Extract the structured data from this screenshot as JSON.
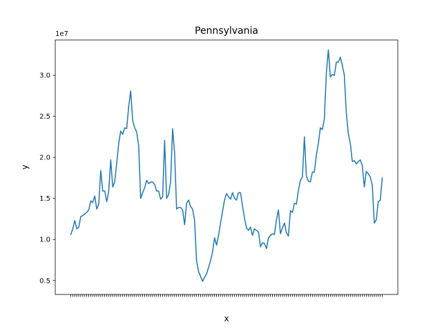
{
  "chart_data": {
    "type": "line",
    "title": "Pennsylvania",
    "xlabel": "x",
    "ylabel": "y",
    "y_scale_label": "1e7",
    "ylim": [
      3300000,
      34300000
    ],
    "yticks": [
      5000000,
      10000000,
      15000000,
      20000000,
      25000000,
      30000000
    ],
    "ytick_labels": [
      "0.5",
      "1.0",
      "1.5",
      "2.0",
      "2.5",
      "3.0"
    ],
    "grid": false,
    "legend": "none",
    "line_color": "#1f77b4",
    "series": [
      {
        "values": [
          10600000,
          11300000,
          12300000,
          11300000,
          11500000,
          12800000,
          12900000,
          13100000,
          13300000,
          13600000,
          14700000,
          14500000,
          15300000,
          13700000,
          14300000,
          18400000,
          15900000,
          15900000,
          14600000,
          15900000,
          19700000,
          16400000,
          17000000,
          19300000,
          21700000,
          23200000,
          22800000,
          23600000,
          23500000,
          26200000,
          28100000,
          24500000,
          23600000,
          23100000,
          21400000,
          15000000,
          15700000,
          16300000,
          17200000,
          16800000,
          17000000,
          17000000,
          16700000,
          15900000,
          15900000,
          14900000,
          15200000,
          22100000,
          15000000,
          15500000,
          17000000,
          23500000,
          20500000,
          13700000,
          13900000,
          13900000,
          13600000,
          11800000,
          14400000,
          14800000,
          14000000,
          13700000,
          12300000,
          7400000,
          6100000,
          5500000,
          4900000,
          5400000,
          5800000,
          6600000,
          7400000,
          8500000,
          10200000,
          9300000,
          10500000,
          12000000,
          13400000,
          14800000,
          15600000,
          15200000,
          14900000,
          15700000,
          15000000,
          14800000,
          15700000,
          15700000,
          14100000,
          12600000,
          11400000,
          11100000,
          11500000,
          10500000,
          11300000,
          11100000,
          10900000,
          9100000,
          9600000,
          9500000,
          8900000,
          10200000,
          10500000,
          10700000,
          10600000,
          12400000,
          13600000,
          10700000,
          11400000,
          12000000,
          10800000,
          10400000,
          13500000,
          13300000,
          14400000,
          14300000,
          16000000,
          17200000,
          17600000,
          22500000,
          17700000,
          17100000,
          17000000,
          18200000,
          18200000,
          20300000,
          21700000,
          23600000,
          23400000,
          24700000,
          30300000,
          33100000,
          29800000,
          30100000,
          30000000,
          31600000,
          31600000,
          32200000,
          31200000,
          30000000,
          25400000,
          22900000,
          21700000,
          19500000,
          19600000,
          19200000,
          19500000,
          19700000,
          19000000,
          16400000,
          18300000,
          18000000,
          17600000,
          16600000,
          12000000,
          12400000,
          14600000,
          14800000,
          17500000
        ]
      }
    ]
  }
}
